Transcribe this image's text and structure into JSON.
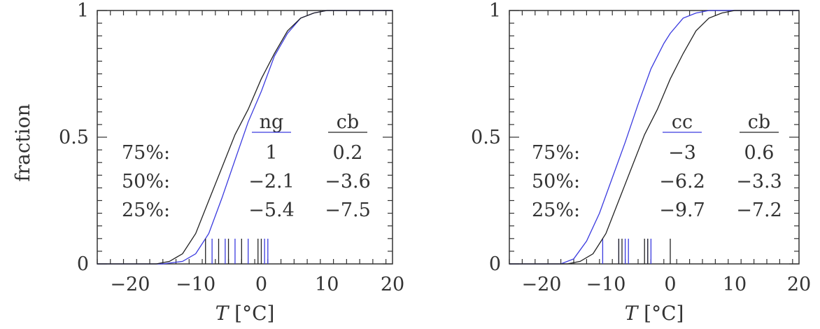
{
  "colors": {
    "curve_cb": "#222222",
    "curve_alt": "#3a3adf",
    "frame": "#333333"
  },
  "chart_data": [
    {
      "type": "line",
      "xlabel": "T [°C]",
      "ylabel": "fraction",
      "xlim": [
        -25,
        20
      ],
      "ylim": [
        0,
        1
      ],
      "xticks": [
        -20,
        -10,
        0,
        10,
        20
      ],
      "yticks": [
        0,
        0.5,
        1
      ],
      "xtick_labels": [
        "−20",
        "−10",
        "0",
        "10",
        "20"
      ],
      "ytick_labels": [
        "0",
        "0.5",
        "1"
      ],
      "series": [
        {
          "name": "ng",
          "color": "#3a3adf",
          "x": [
            -25,
            -15,
            -12,
            -10,
            -8,
            -6,
            -4,
            -2,
            0,
            2,
            4,
            6,
            8,
            10,
            20
          ],
          "y": [
            0,
            0,
            0.01,
            0.04,
            0.12,
            0.26,
            0.41,
            0.56,
            0.68,
            0.82,
            0.91,
            0.97,
            0.99,
            1,
            1
          ],
          "rug": [
            -7.5,
            -5.5,
            -4,
            -2,
            0.5,
            1
          ]
        },
        {
          "name": "cb",
          "color": "#222222",
          "x": [
            -25,
            -16,
            -14,
            -12,
            -10,
            -8,
            -6,
            -4,
            -2,
            0,
            2,
            4,
            6,
            8,
            10,
            20
          ],
          "y": [
            0,
            0,
            0.01,
            0.04,
            0.12,
            0.25,
            0.38,
            0.51,
            0.61,
            0.73,
            0.83,
            0.92,
            0.97,
            0.99,
            1,
            1
          ],
          "rug": [
            -8.5,
            -6.5,
            -5,
            -3,
            -0.5,
            0
          ]
        }
      ],
      "table": {
        "headers": [
          "ng",
          "cb"
        ],
        "rows": [
          {
            "label": "75%:",
            "values": [
              "1",
              "0.2"
            ]
          },
          {
            "label": "50%:",
            "values": [
              "−2.1",
              "−3.6"
            ]
          },
          {
            "label": "25%:",
            "values": [
              "−5.4",
              "−7.5"
            ]
          }
        ]
      }
    },
    {
      "type": "line",
      "xlabel": "T [°C]",
      "xlim": [
        -25,
        20
      ],
      "ylim": [
        0,
        1
      ],
      "xticks": [
        -20,
        -10,
        0,
        10,
        20
      ],
      "yticks": [
        0,
        0.5,
        1
      ],
      "xtick_labels": [
        "−20",
        "−10",
        "0",
        "10",
        "20"
      ],
      "ytick_labels": [
        "0",
        "0.5",
        "1"
      ],
      "series": [
        {
          "name": "cc",
          "color": "#3a3adf",
          "x": [
            -25,
            -17,
            -15,
            -13,
            -11,
            -9,
            -7,
            -5,
            -3,
            -1,
            0,
            2,
            4,
            6,
            8,
            10,
            20
          ],
          "y": [
            0,
            0,
            0.02,
            0.09,
            0.2,
            0.34,
            0.48,
            0.63,
            0.77,
            0.87,
            0.91,
            0.97,
            0.99,
            1,
            1,
            1,
            1
          ],
          "rug": [
            -10.5,
            -8,
            -7,
            -6.5,
            -3.5,
            -3
          ]
        },
        {
          "name": "cb",
          "color": "#222222",
          "x": [
            -25,
            -16,
            -14,
            -12,
            -10,
            -8,
            -6,
            -4,
            -2,
            0,
            2,
            4,
            6,
            8,
            10,
            20
          ],
          "y": [
            0,
            0,
            0.01,
            0.04,
            0.12,
            0.25,
            0.38,
            0.51,
            0.61,
            0.73,
            0.83,
            0.92,
            0.97,
            0.99,
            1,
            1
          ],
          "rug": [
            -8,
            -7.5,
            -4,
            -3.5,
            0
          ]
        }
      ],
      "table": {
        "headers": [
          "cc",
          "cb"
        ],
        "rows": [
          {
            "label": "75%:",
            "values": [
              "−3",
              "0.6"
            ]
          },
          {
            "label": "50%:",
            "values": [
              "−6.2",
              "−3.3"
            ]
          },
          {
            "label": "25%:",
            "values": [
              "−9.7",
              "−7.2"
            ]
          }
        ]
      }
    }
  ]
}
